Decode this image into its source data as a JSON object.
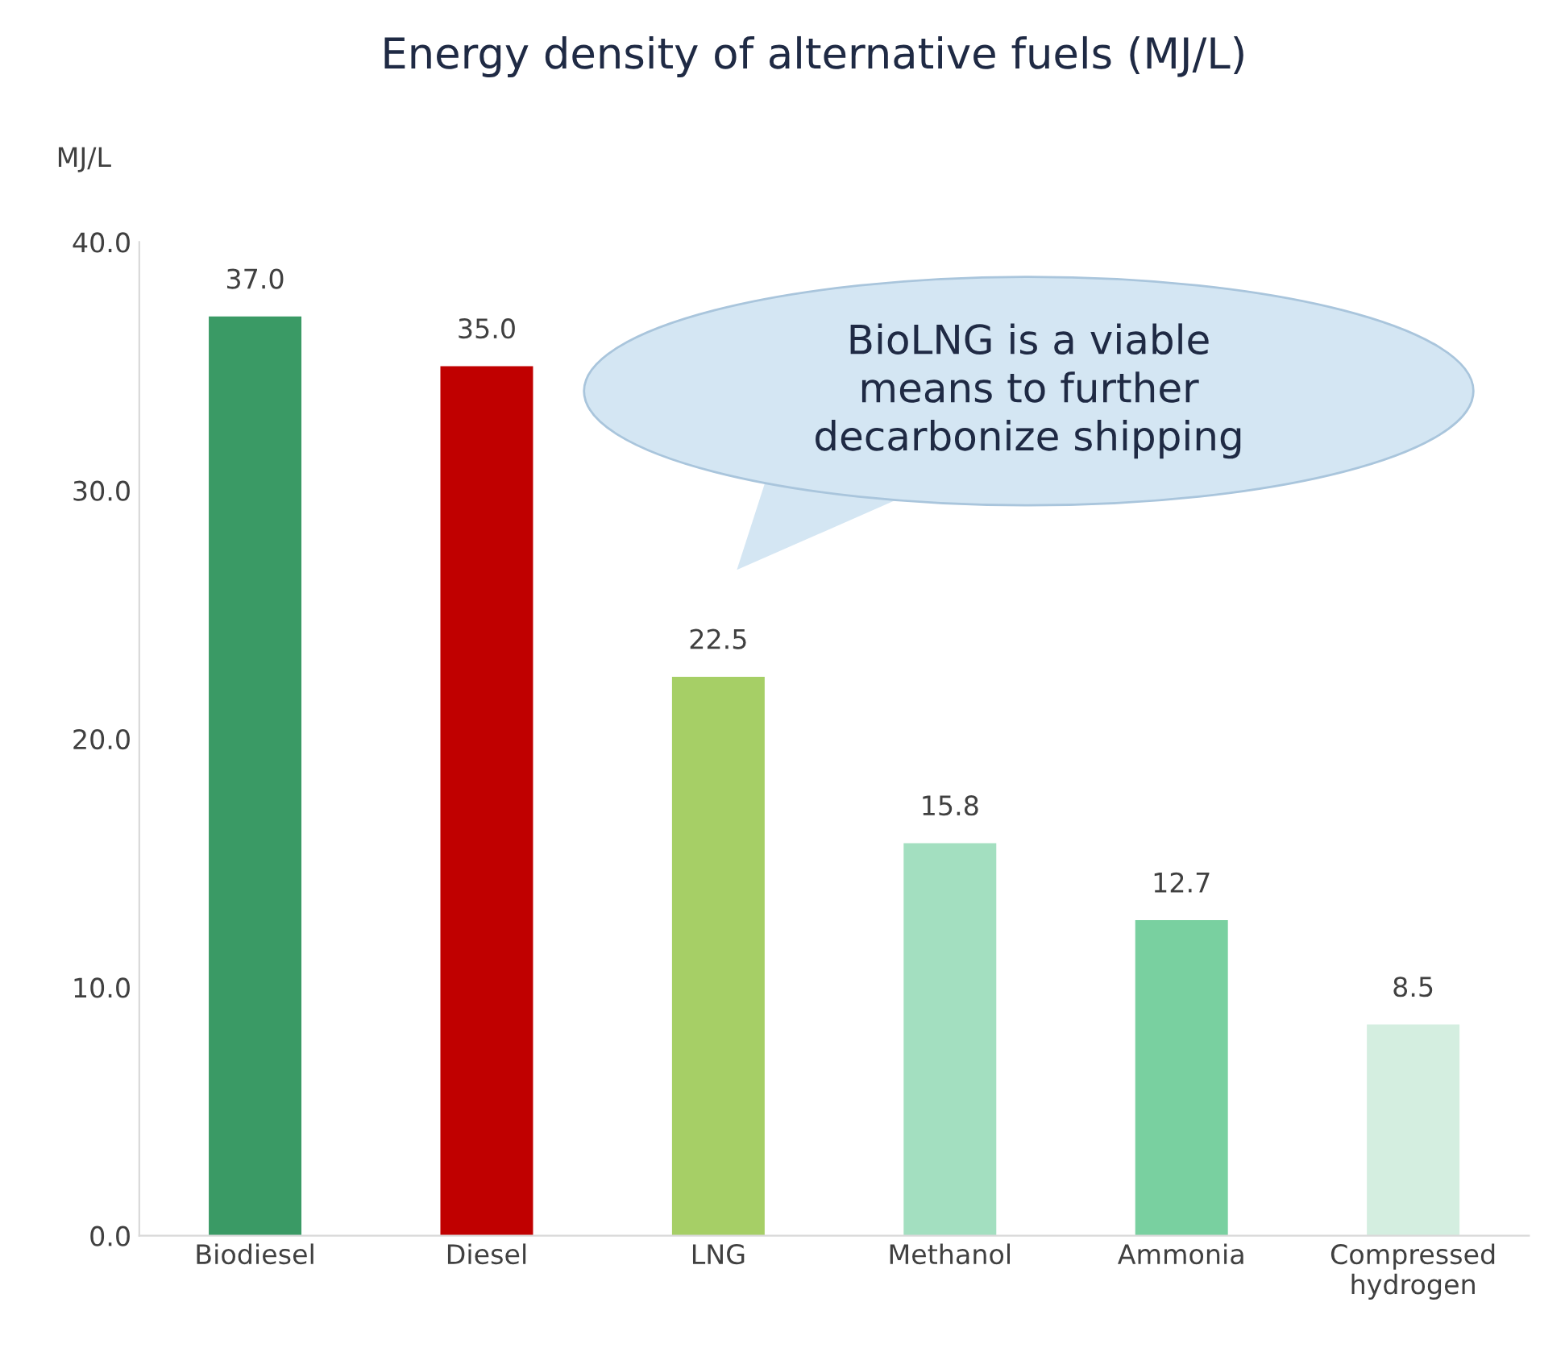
{
  "chart_data": {
    "type": "bar",
    "title": "Energy density of alternative fuels (MJ/L)",
    "ylabel": "MJ/L",
    "categories": [
      "Biodiesel",
      "Diesel",
      "LNG",
      "Methanol",
      "Ammonia",
      "Compressed\nhydrogen"
    ],
    "values": [
      37.0,
      35.0,
      22.5,
      15.8,
      12.7,
      8.5
    ],
    "colors": [
      "#3a9a65",
      "#c00000",
      "#a6cf66",
      "#a3dfc0",
      "#79d0a0",
      "#d4eee0"
    ],
    "ylim": [
      0,
      40
    ],
    "yticks": [
      {
        "value": 0,
        "label": "0.0"
      },
      {
        "value": 10,
        "label": "10.0"
      },
      {
        "value": 20,
        "label": "20.0"
      },
      {
        "value": 30,
        "label": "30.0"
      },
      {
        "value": 40,
        "label": "40.0"
      }
    ],
    "value_labels": [
      "37.0",
      "35.0",
      "22.5",
      "15.8",
      "12.7",
      "8.5"
    ],
    "grid": false,
    "legend": false,
    "annotations": [
      "BioLNG is a viable\nmeans to further\ndecarbonize shipping"
    ]
  }
}
